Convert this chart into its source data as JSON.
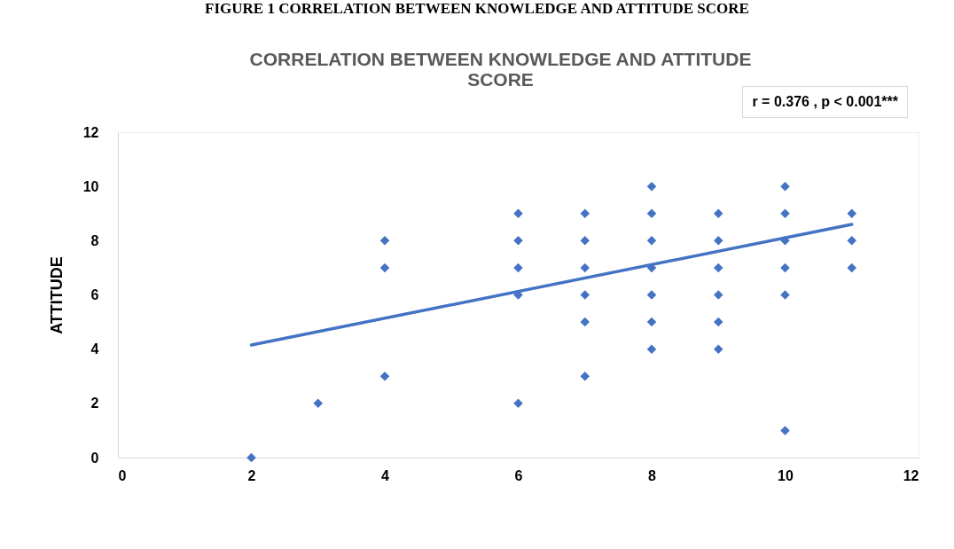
{
  "chart_data": {
    "type": "scatter",
    "title": "CORRELATION BETWEEN KNOWLEDGE AND ATTITUDE SCORE",
    "ylabel": "ATTITUDE",
    "annotations": [
      "FIGURE 1 CORRELATION BETWEEN KNOWLEDGE AND ATTITUDE SCORE",
      "r = 0.376 , p < 0.001***"
    ],
    "series": [
      {
        "color": "#4472c4",
        "marker": "diamond",
        "x": [
          2,
          3,
          4,
          4,
          4,
          6,
          6,
          6,
          6,
          6,
          7,
          7,
          7,
          7,
          7,
          7,
          8,
          8,
          8,
          8,
          8,
          8,
          8,
          9,
          9,
          9,
          9,
          9,
          9,
          10,
          10,
          10,
          10,
          10,
          10,
          11,
          11,
          11
        ],
        "values": [
          0,
          2,
          8,
          7,
          3,
          9,
          8,
          7,
          6,
          2,
          9,
          8,
          7,
          6,
          5,
          3,
          10,
          9,
          8,
          7,
          6,
          5,
          4,
          9,
          8,
          7,
          6,
          5,
          4,
          10,
          9,
          8,
          7,
          6,
          1,
          9,
          8,
          7
        ]
      },
      {
        "type": "line",
        "color": "#4472c4",
        "x": [
          2,
          11
        ],
        "values": [
          4.15,
          8.6
        ]
      }
    ],
    "xlim": [
      0,
      12
    ],
    "xticks": [
      0,
      2,
      4,
      6,
      8,
      10,
      12
    ],
    "ylim": [
      0,
      12
    ],
    "yticks": [
      0,
      2,
      4,
      6,
      8,
      10,
      12
    ],
    "grid": false,
    "line_style": "solid"
  }
}
